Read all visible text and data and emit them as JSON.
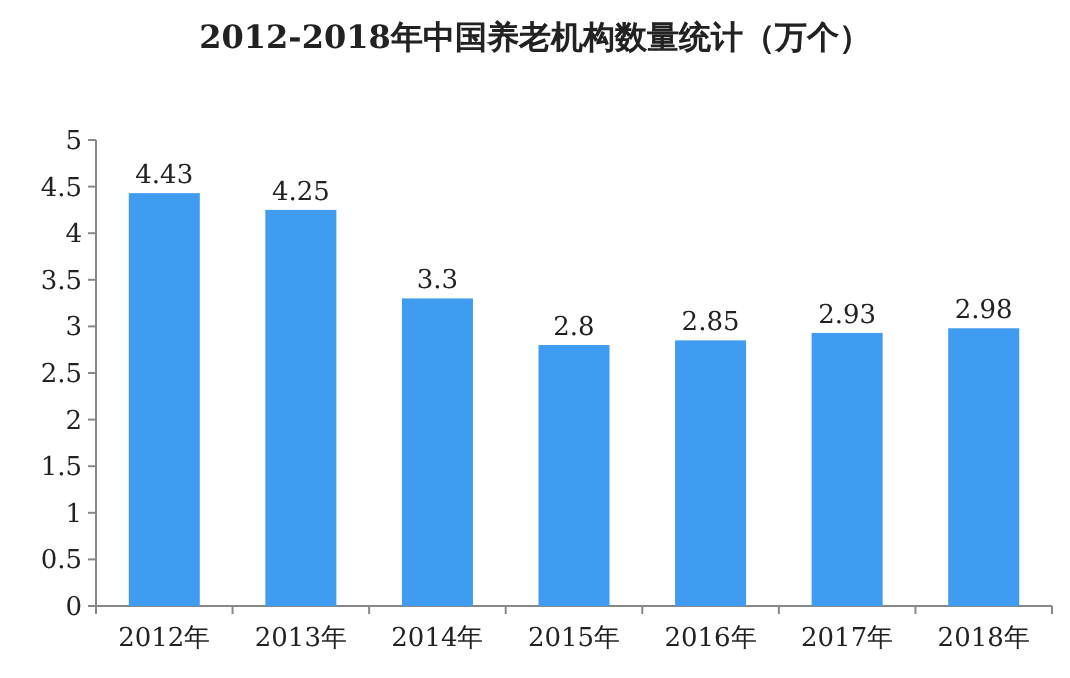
{
  "chart_data": {
    "type": "bar",
    "title": "2012-2018年中国养老机构数量统计（万个）",
    "categories": [
      "2012年",
      "2013年",
      "2014年",
      "2015年",
      "2016年",
      "2017年",
      "2018年"
    ],
    "values": [
      4.43,
      4.25,
      3.3,
      2.8,
      2.85,
      2.93,
      2.98
    ],
    "color": "#3f9cf0",
    "ylim": [
      0,
      5
    ],
    "yticks": [
      0,
      0.5,
      1,
      1.5,
      2,
      2.5,
      3,
      3.5,
      4,
      4.5,
      5
    ],
    "data_labels": true
  }
}
